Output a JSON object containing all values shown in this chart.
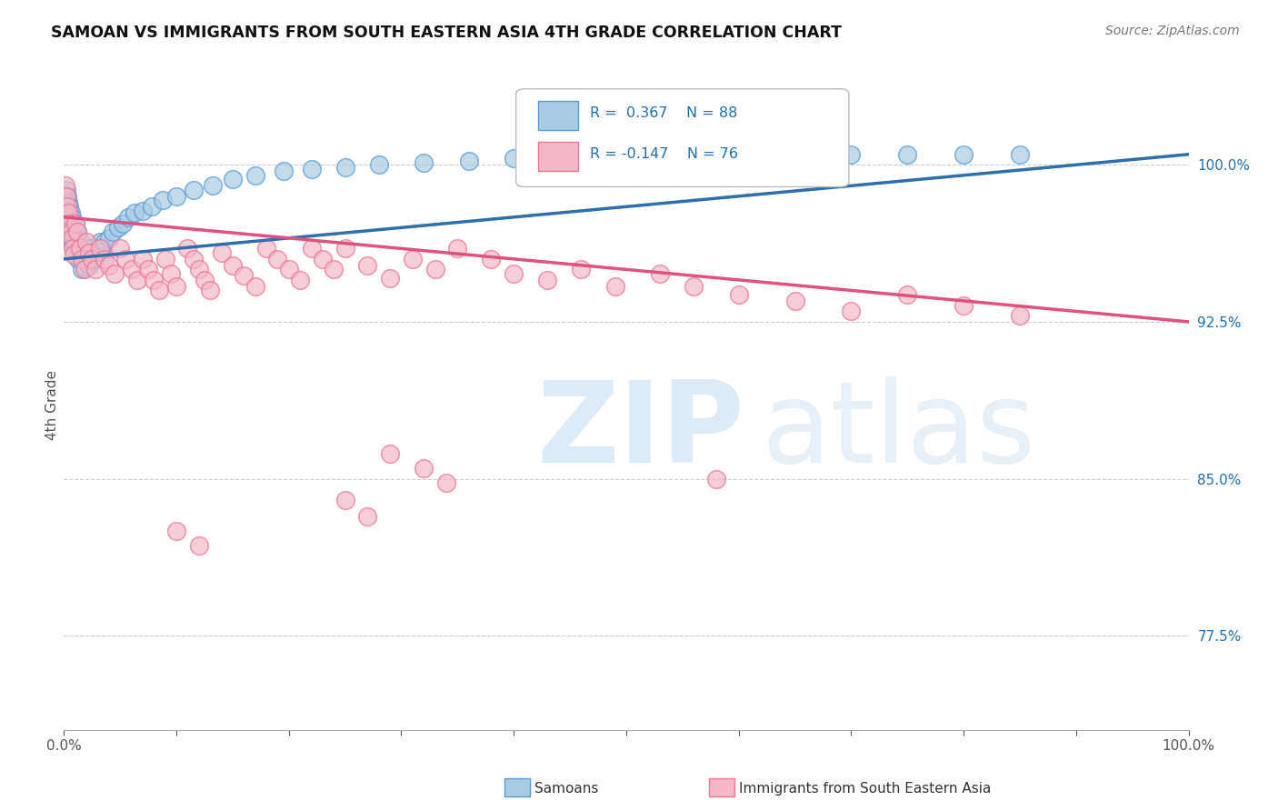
{
  "title": "SAMOAN VS IMMIGRANTS FROM SOUTH EASTERN ASIA 4TH GRADE CORRELATION CHART",
  "source_text": "Source: ZipAtlas.com",
  "ylabel": "4th Grade",
  "ytick_labels": [
    "100.0%",
    "92.5%",
    "85.0%",
    "77.5%"
  ],
  "ytick_values": [
    1.0,
    0.925,
    0.85,
    0.775
  ],
  "xmin": 0.0,
  "xmax": 1.0,
  "ymin": 0.73,
  "ymax": 1.04,
  "color_blue": "#a8cce4",
  "color_blue_edge": "#5b9bd5",
  "color_pink": "#f4b8c8",
  "color_pink_edge": "#e8789a",
  "color_trendline_blue": "#2e6fac",
  "color_trendline_pink": "#e05080",
  "legend_label_samoans": "Samoans",
  "legend_label_immigrants": "Immigrants from South Eastern Asia",
  "blue_trendline_x0": 0.0,
  "blue_trendline_y0": 0.955,
  "blue_trendline_x1": 1.0,
  "blue_trendline_y1": 1.005,
  "pink_trendline_x0": 0.0,
  "pink_trendline_y0": 0.975,
  "pink_trendline_x1": 1.0,
  "pink_trendline_y1": 0.925,
  "blue_x": [
    0.001,
    0.001,
    0.001,
    0.002,
    0.002,
    0.002,
    0.002,
    0.003,
    0.003,
    0.003,
    0.003,
    0.004,
    0.004,
    0.004,
    0.004,
    0.005,
    0.005,
    0.005,
    0.005,
    0.006,
    0.006,
    0.006,
    0.007,
    0.007,
    0.007,
    0.008,
    0.008,
    0.008,
    0.009,
    0.009,
    0.01,
    0.01,
    0.01,
    0.011,
    0.011,
    0.012,
    0.012,
    0.013,
    0.013,
    0.014,
    0.015,
    0.015,
    0.016,
    0.016,
    0.017,
    0.018,
    0.019,
    0.02,
    0.021,
    0.022,
    0.024,
    0.025,
    0.027,
    0.028,
    0.03,
    0.032,
    0.034,
    0.036,
    0.04,
    0.043,
    0.048,
    0.052,
    0.057,
    0.063,
    0.07,
    0.078,
    0.088,
    0.1,
    0.115,
    0.132,
    0.15,
    0.17,
    0.195,
    0.22,
    0.25,
    0.28,
    0.32,
    0.36,
    0.4,
    0.45,
    0.5,
    0.55,
    0.6,
    0.65,
    0.7,
    0.75,
    0.8,
    0.85
  ],
  "blue_y": [
    0.985,
    0.98,
    0.975,
    0.988,
    0.983,
    0.978,
    0.973,
    0.985,
    0.98,
    0.975,
    0.97,
    0.982,
    0.977,
    0.972,
    0.967,
    0.98,
    0.975,
    0.97,
    0.965,
    0.977,
    0.972,
    0.967,
    0.975,
    0.97,
    0.965,
    0.972,
    0.967,
    0.962,
    0.97,
    0.965,
    0.972,
    0.967,
    0.962,
    0.965,
    0.96,
    0.968,
    0.963,
    0.96,
    0.955,
    0.958,
    0.963,
    0.958,
    0.955,
    0.95,
    0.957,
    0.954,
    0.951,
    0.958,
    0.955,
    0.952,
    0.96,
    0.957,
    0.955,
    0.958,
    0.96,
    0.963,
    0.96,
    0.963,
    0.965,
    0.968,
    0.97,
    0.972,
    0.975,
    0.977,
    0.978,
    0.98,
    0.983,
    0.985,
    0.988,
    0.99,
    0.993,
    0.995,
    0.997,
    0.998,
    0.999,
    1.0,
    1.001,
    1.002,
    1.003,
    1.003,
    1.003,
    1.004,
    1.004,
    1.004,
    1.005,
    1.005,
    1.005,
    1.005
  ],
  "pink_x": [
    0.001,
    0.002,
    0.003,
    0.004,
    0.005,
    0.006,
    0.007,
    0.008,
    0.009,
    0.01,
    0.012,
    0.014,
    0.016,
    0.018,
    0.02,
    0.022,
    0.025,
    0.028,
    0.032,
    0.036,
    0.04,
    0.045,
    0.05,
    0.055,
    0.06,
    0.065,
    0.07,
    0.075,
    0.08,
    0.085,
    0.09,
    0.095,
    0.1,
    0.11,
    0.115,
    0.12,
    0.125,
    0.13,
    0.14,
    0.15,
    0.16,
    0.17,
    0.18,
    0.19,
    0.2,
    0.21,
    0.22,
    0.23,
    0.24,
    0.25,
    0.27,
    0.29,
    0.31,
    0.33,
    0.35,
    0.38,
    0.4,
    0.43,
    0.46,
    0.49,
    0.53,
    0.56,
    0.6,
    0.65,
    0.7,
    0.75,
    0.8,
    0.85,
    0.58,
    0.29,
    0.32,
    0.34,
    0.25,
    0.27,
    0.1,
    0.12
  ],
  "pink_y": [
    0.99,
    0.985,
    0.98,
    0.977,
    0.972,
    0.968,
    0.965,
    0.96,
    0.957,
    0.972,
    0.968,
    0.96,
    0.955,
    0.95,
    0.963,
    0.958,
    0.955,
    0.95,
    0.96,
    0.955,
    0.952,
    0.948,
    0.96,
    0.955,
    0.95,
    0.945,
    0.955,
    0.95,
    0.945,
    0.94,
    0.955,
    0.948,
    0.942,
    0.96,
    0.955,
    0.95,
    0.945,
    0.94,
    0.958,
    0.952,
    0.947,
    0.942,
    0.96,
    0.955,
    0.95,
    0.945,
    0.96,
    0.955,
    0.95,
    0.96,
    0.952,
    0.946,
    0.955,
    0.95,
    0.96,
    0.955,
    0.948,
    0.945,
    0.95,
    0.942,
    0.948,
    0.942,
    0.938,
    0.935,
    0.93,
    0.938,
    0.933,
    0.928,
    0.85,
    0.862,
    0.855,
    0.848,
    0.84,
    0.832,
    0.825,
    0.818
  ]
}
